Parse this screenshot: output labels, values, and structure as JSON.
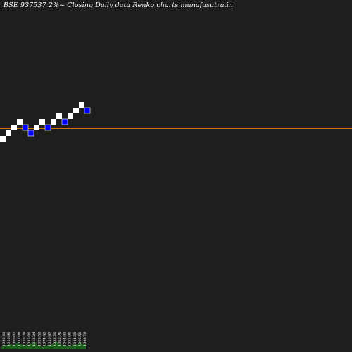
{
  "header": {
    "title": "BSE 937537 2%~  Closing Daily data  Renko  charts munafasutra.in"
  },
  "colors": {
    "background": "#1e1e1e",
    "up_brick": "#ffffff",
    "down_brick": "#0000ff",
    "reference_line": "#c87814",
    "volume": "#1a5c1a"
  },
  "chart_data": {
    "type": "renko",
    "title": "BSE 937537 2%~  Closing Daily data  Renko  charts munafasutra.in",
    "brick_size_pct": 2,
    "bricks": [
      {
        "level": 0,
        "dir": "up"
      },
      {
        "level": 1,
        "dir": "up"
      },
      {
        "level": 2,
        "dir": "up"
      },
      {
        "level": 3,
        "dir": "up"
      },
      {
        "level": 2,
        "dir": "down"
      },
      {
        "level": 1,
        "dir": "down"
      },
      {
        "level": 2,
        "dir": "up"
      },
      {
        "level": 3,
        "dir": "up"
      },
      {
        "level": 2,
        "dir": "down"
      },
      {
        "level": 3,
        "dir": "up"
      },
      {
        "level": 4,
        "dir": "up"
      },
      {
        "level": 3,
        "dir": "down"
      },
      {
        "level": 4,
        "dir": "up"
      },
      {
        "level": 5,
        "dir": "up"
      },
      {
        "level": 6,
        "dir": "up"
      },
      {
        "level": 5,
        "dir": "down"
      }
    ],
    "reference_level": 2,
    "x_tick_labels": [
      "1040.01",
      "1016.90",
      "1066.02",
      "1057.08",
      "1076.79",
      "1035.00",
      "1013.24",
      "1029.50",
      "1074.45",
      "1050.97",
      "1033.50",
      "1065.76",
      "1064.01",
      "1051.00",
      "1044.59",
      "1006.50",
      "1049.79"
    ],
    "volume": [
      0.35,
      0.5,
      0.6,
      0.55,
      0.75,
      0.65,
      0.5,
      0.55,
      0.7,
      0.8,
      0.45,
      0.3,
      0.4,
      0.5,
      0.6,
      0.85,
      0.7,
      0.5,
      0.4,
      0.35,
      0.55,
      0.6,
      0.75,
      0.65
    ]
  }
}
